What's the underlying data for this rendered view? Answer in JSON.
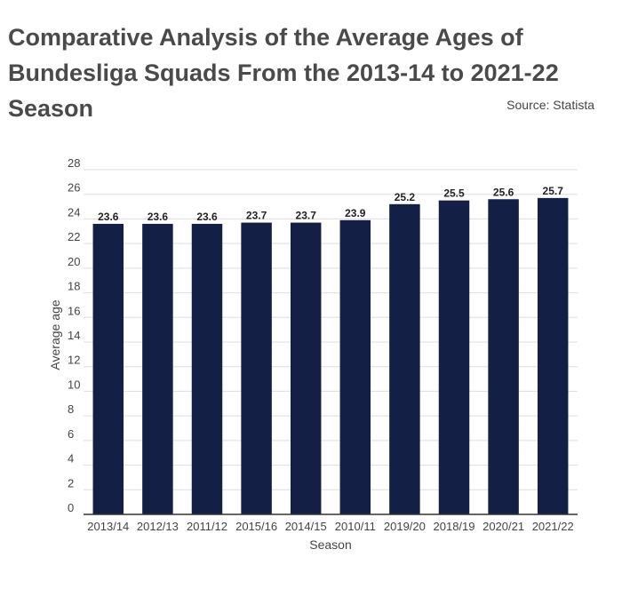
{
  "chart_data": {
    "type": "bar",
    "title": "Comparative Analysis of the Average Ages of Bundesliga Squads From the 2013-14 to 2021-22 Season",
    "source": "Source: Statista",
    "xlabel": "Season",
    "ylabel": "Average age",
    "categories": [
      "2013/14",
      "2012/13",
      "2011/12",
      "2015/16",
      "2014/15",
      "2010/11",
      "2019/20",
      "2018/19",
      "2020/21",
      "2021/22"
    ],
    "values": [
      23.6,
      23.6,
      23.6,
      23.7,
      23.7,
      23.9,
      25.2,
      25.5,
      25.6,
      25.7
    ],
    "ylim": [
      0,
      28
    ],
    "yticks": [
      0,
      2,
      4,
      6,
      8,
      10,
      12,
      14,
      16,
      18,
      20,
      22,
      24,
      26,
      28
    ],
    "grid": true,
    "legend": "none",
    "colors": {
      "bar": "#131f45",
      "grid": "#dddddd",
      "axis": "#333333"
    }
  }
}
